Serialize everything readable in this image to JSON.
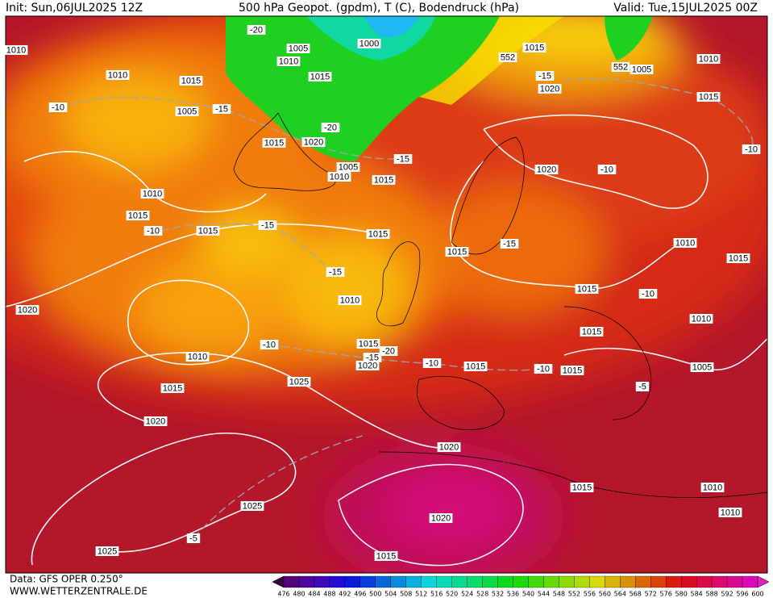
{
  "header": {
    "init": "Init: Sun,06JUL2025 12Z",
    "title": "500 hPa Geopot. (gpdm), T (C), Bodendruck (hPa)",
    "valid": "Valid: Tue,15JUL2025 00Z"
  },
  "footer": {
    "source": "Data: GFS OPER 0.250°",
    "website": "WWW.WETTERZENTRALE.DE"
  },
  "map_labels": [
    "1010",
    "1010",
    "1015",
    "1005",
    "-10",
    "-15",
    "-20",
    "1005",
    "1010",
    "1000",
    "1015",
    "1015",
    "1020",
    "-20",
    "1005",
    "1010",
    "1015",
    "-15",
    "552",
    "1015",
    "-15",
    "1020",
    "552",
    "1005",
    "1010",
    "1015",
    "-10",
    "1020",
    "-10",
    "1010",
    "1015",
    "-10",
    "1015",
    "-15",
    "1015",
    "1015",
    "-15",
    "1010",
    "1015",
    "-15",
    "1010",
    "1015",
    "-10",
    "1020",
    "1010",
    "1015",
    "1010",
    "-10",
    "1015",
    "-20",
    "-15",
    "1020",
    "-10",
    "1015",
    "-10",
    "1015",
    "1005",
    "-5",
    "1025",
    "1015",
    "1020",
    "1020",
    "1015",
    "1010",
    "1025",
    "1010",
    "1020",
    "-5",
    "1025",
    "1015"
  ],
  "colorbar": {
    "labels": [
      476,
      480,
      484,
      488,
      492,
      496,
      500,
      504,
      508,
      512,
      516,
      520,
      524,
      528,
      532,
      536,
      540,
      544,
      548,
      552,
      556,
      560,
      564,
      568,
      572,
      576,
      580,
      584,
      588,
      592,
      596,
      600
    ]
  }
}
